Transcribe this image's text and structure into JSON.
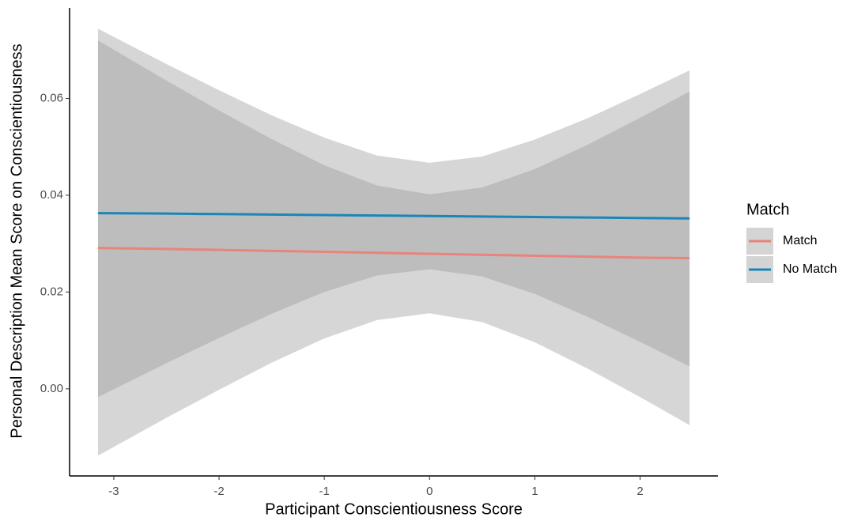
{
  "chart_data": {
    "type": "line",
    "x_label": "Participant Conscientiousness Score",
    "y_label": "Personal Description Mean Score on Conscientiousness",
    "legend_title": "Match",
    "legend": "right",
    "grid": false,
    "band_color": "#999999",
    "x": [
      -3.15,
      -2.5,
      -2,
      -1.5,
      -1,
      -0.5,
      0,
      0.5,
      1,
      1.5,
      2,
      2.47
    ],
    "series": [
      {
        "name": "Match",
        "color": "#E8847A",
        "values": [
          0.0291,
          0.0289,
          0.0287,
          0.0285,
          0.0283,
          0.0281,
          0.0279,
          0.0277,
          0.0275,
          0.0273,
          0.0271,
          0.027
        ],
        "lower": [
          -0.0138,
          -0.006,
          -0.0002,
          0.0054,
          0.0104,
          0.0142,
          0.0156,
          0.0138,
          0.0096,
          0.0042,
          -0.0017,
          -0.0075
        ],
        "upper": [
          0.072,
          0.0637,
          0.0575,
          0.0516,
          0.0462,
          0.042,
          0.0402,
          0.0416,
          0.0454,
          0.0504,
          0.056,
          0.0614
        ]
      },
      {
        "name": "No Match",
        "color": "#1A86B8",
        "values": [
          0.0363,
          0.0362,
          0.0361,
          0.036,
          0.0359,
          0.0358,
          0.0357,
          0.0356,
          0.0355,
          0.0354,
          0.0353,
          0.0352
        ],
        "lower": [
          -0.0017,
          0.0053,
          0.0105,
          0.0155,
          0.02,
          0.0234,
          0.0247,
          0.0232,
          0.0196,
          0.0149,
          0.0097,
          0.0046
        ],
        "upper": [
          0.0744,
          0.0671,
          0.0617,
          0.0565,
          0.0519,
          0.0482,
          0.0467,
          0.048,
          0.0515,
          0.0559,
          0.0609,
          0.0658
        ]
      }
    ],
    "xlim": [
      -3.42,
      2.74
    ],
    "ylim": [
      -0.018,
      0.0787
    ],
    "xticks": [
      -3,
      -2,
      -1,
      0,
      1,
      2
    ],
    "yticks": [
      {
        "value": 0,
        "label": "0.00"
      },
      0.02,
      0.04,
      0.06
    ]
  }
}
